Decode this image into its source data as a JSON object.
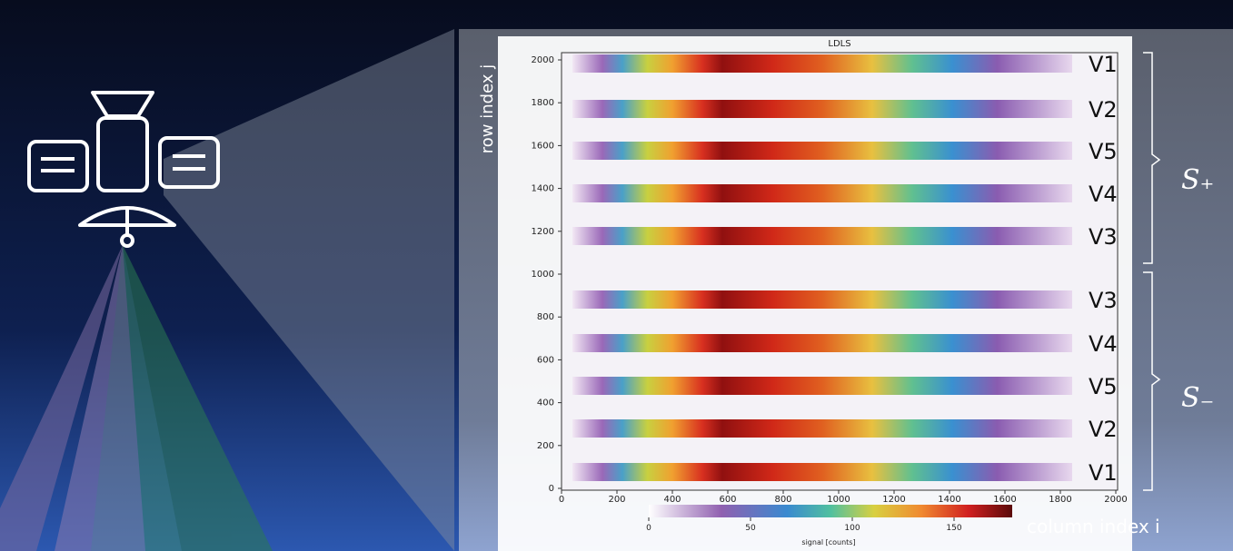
{
  "figure": {
    "title": "LDLS",
    "y_axis_label": "row index j",
    "x_axis_label": "column index i",
    "xticks": [
      0,
      200,
      400,
      600,
      800,
      1000,
      1200,
      1400,
      1600,
      1800,
      2000
    ],
    "yticks": [
      0,
      200,
      400,
      600,
      800,
      1000,
      1200,
      1400,
      1600,
      1800,
      2000
    ],
    "strips": [
      "V1",
      "V2",
      "V5",
      "V4",
      "V3",
      "V3",
      "V4",
      "V5",
      "V2",
      "V1"
    ],
    "groups": [
      "S₊",
      "S₋"
    ],
    "colorbar": {
      "label": "signal [counts]",
      "ticks": [
        0,
        50,
        100,
        150
      ]
    }
  }
}
